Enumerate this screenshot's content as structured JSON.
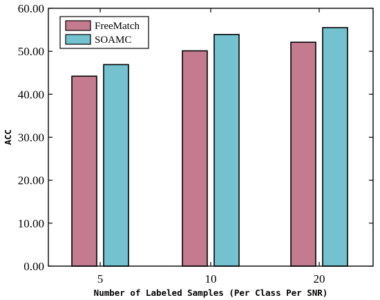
{
  "chart_data": {
    "type": "bar",
    "categories": [
      "5",
      "10",
      "20"
    ],
    "series": [
      {
        "name": "FreeMatch",
        "values": [
          44.2,
          50.1,
          52.1
        ],
        "color": "#c47a8f"
      },
      {
        "name": "SOAMC",
        "values": [
          46.9,
          53.9,
          55.5
        ],
        "color": "#74c1cf"
      }
    ],
    "xlabel": "Number of Labeled Samples (Per Class Per SNR)",
    "ylabel": "ACC",
    "ylim": [
      0,
      60
    ],
    "yticks": [
      "0.00",
      "10.00",
      "20.00",
      "30.00",
      "40.00",
      "50.00",
      "60.00"
    ],
    "grid": false,
    "legend_position": "top-left"
  }
}
